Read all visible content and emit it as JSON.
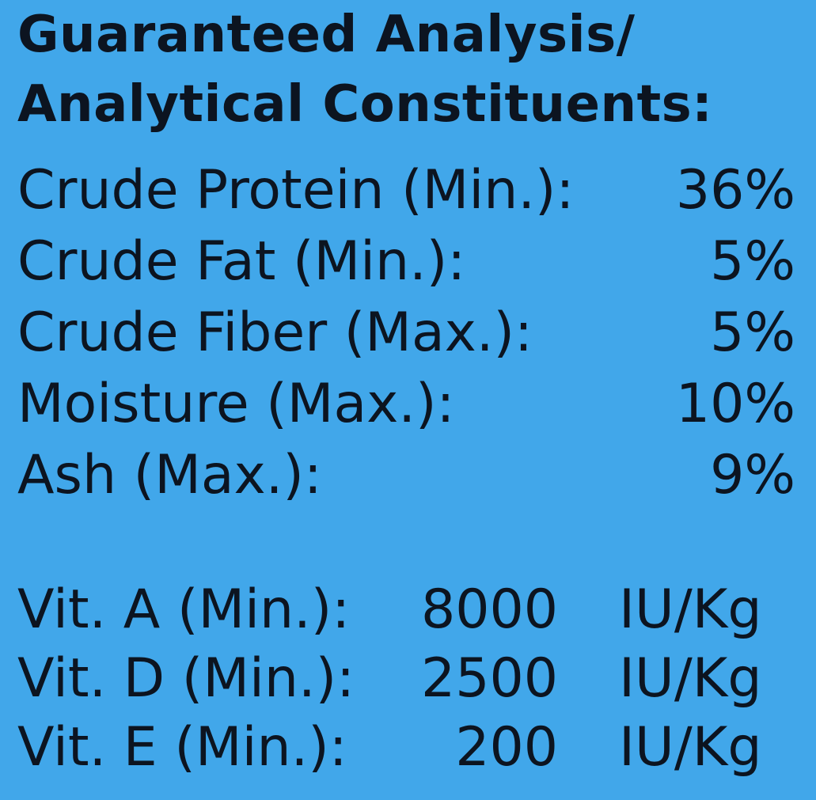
{
  "background_color": "#41a7ea",
  "text_color": "#0c1420",
  "title": [
    "Guaranteed Analysis/",
    "Analytical Constituents:"
  ],
  "analysis": [
    {
      "label": "Crude Protein (Min.):",
      "value": "36%"
    },
    {
      "label": "Crude Fat (Min.):",
      "value": "5%"
    },
    {
      "label": "Crude Fiber (Max.):",
      "value": "5%"
    },
    {
      "label": "Moisture (Max.):",
      "value": "10%"
    },
    {
      "label": "Ash (Max.):",
      "value": "9%"
    }
  ],
  "vitamins": [
    {
      "label": "Vit. A (Min.):",
      "value": "8000",
      "unit": "IU/Kg"
    },
    {
      "label": "Vit. D (Min.):",
      "value": "2500",
      "unit": "IU/Kg"
    },
    {
      "label": "Vit. E (Min.):",
      "value": "200",
      "unit": "IU/Kg"
    }
  ]
}
